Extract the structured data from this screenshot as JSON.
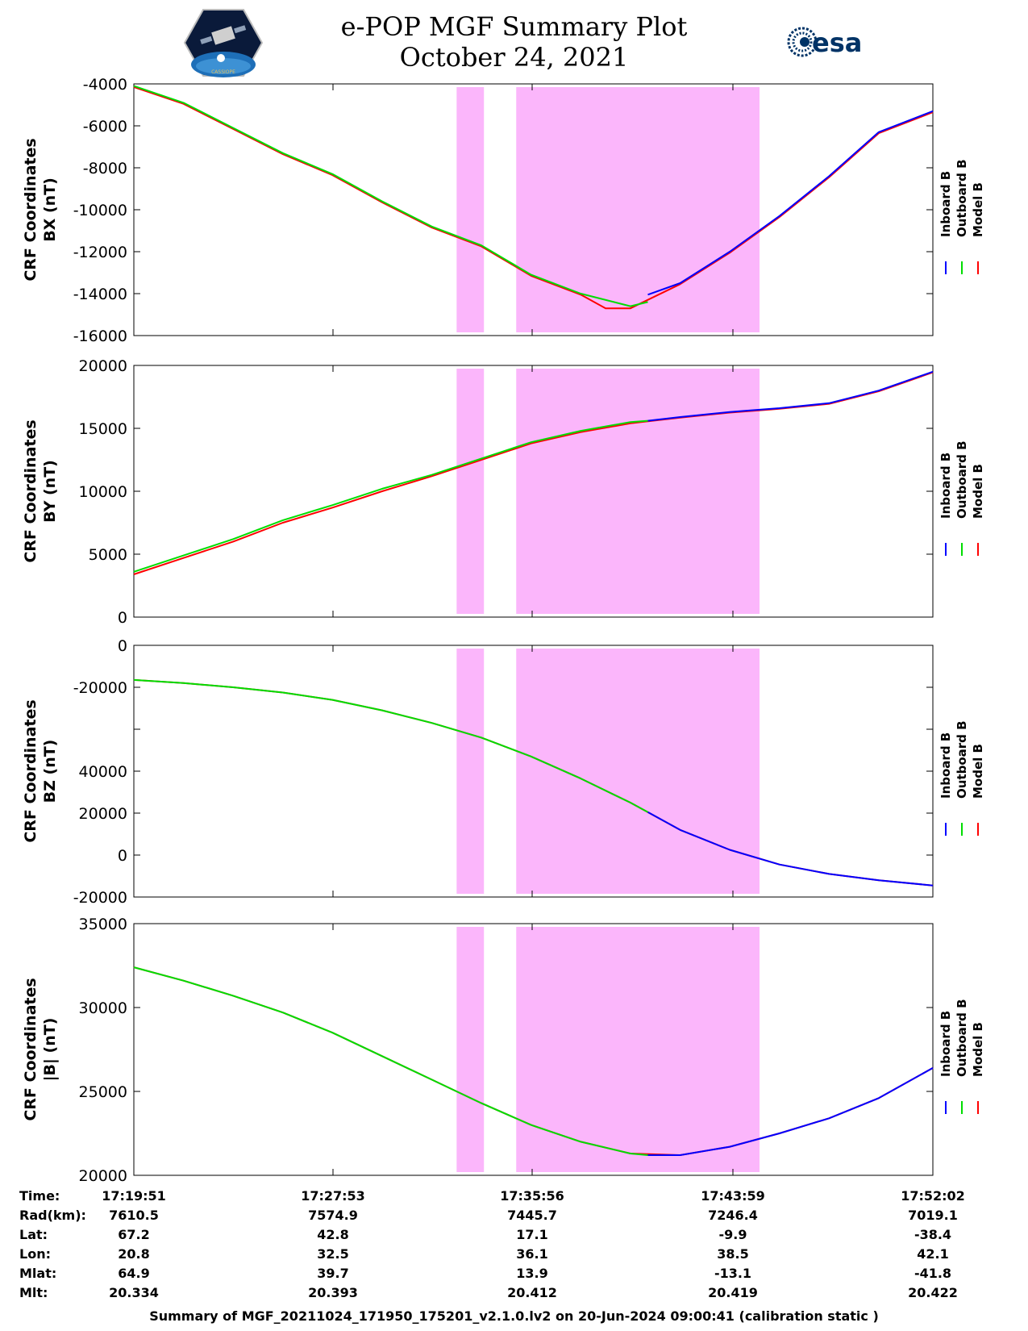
{
  "header": {
    "title_line1": "e-POP MGF Summary Plot",
    "title_line2": "October 24, 2021",
    "logo_left_text": "CASSIOPE",
    "logo_right_text": "esa"
  },
  "chart_data": [
    {
      "type": "line",
      "panel": "BX",
      "ylabel_line1": "CRF Coordinates",
      "ylabel_line2": "BX (nT)",
      "yticks": [
        "-4000",
        "-6000",
        "-8000",
        "-10000",
        "-12000",
        "-14000",
        "-16000"
      ],
      "ylim": [
        -16000,
        -4000
      ],
      "x_range_minutes": [
        0,
        32.18
      ],
      "shaded_intervals_minutes": [
        [
          13.0,
          14.1
        ],
        [
          15.4,
          25.2
        ]
      ],
      "legend": [
        "Inboard B",
        "Outboard B",
        "Model B"
      ],
      "legend_colors": [
        "#0000ff",
        "#00dd00",
        "#ff0000"
      ],
      "series": [
        {
          "name": "Inboard B",
          "color": "#0000ff",
          "x": [
            20.7,
            22,
            24,
            26,
            28,
            30,
            32.18
          ],
          "y": [
            -14050,
            -13500,
            -12000,
            -10300,
            -8400,
            -6300,
            -5300
          ]
        },
        {
          "name": "Outboard B",
          "color": "#00dd00",
          "x": [
            0,
            2,
            4,
            6,
            8,
            10,
            12,
            14,
            16,
            18,
            20,
            20.7
          ],
          "y": [
            -4100,
            -4900,
            -6100,
            -7300,
            -8300,
            -9600,
            -10800,
            -11700,
            -13100,
            -14000,
            -14600,
            -14400
          ]
        },
        {
          "name": "Model B",
          "color": "#ff0000",
          "x": [
            0,
            2,
            4,
            6,
            8,
            10,
            12,
            14,
            16,
            18,
            19,
            20,
            22,
            24,
            26,
            28,
            30,
            32.18
          ],
          "y": [
            -4150,
            -4950,
            -6150,
            -7350,
            -8350,
            -9650,
            -10850,
            -11750,
            -13150,
            -14050,
            -14700,
            -14700,
            -13550,
            -12050,
            -10350,
            -8450,
            -6350,
            -5350
          ]
        }
      ]
    },
    {
      "type": "line",
      "panel": "BY",
      "ylabel_line1": "CRF Coordinates",
      "ylabel_line2": "BY (nT)",
      "yticks": [
        "20000",
        "15000",
        "10000",
        "5000",
        "0"
      ],
      "ylim": [
        0,
        20000
      ],
      "x_range_minutes": [
        0,
        32.18
      ],
      "shaded_intervals_minutes": [
        [
          13.0,
          14.1
        ],
        [
          15.4,
          25.2
        ]
      ],
      "legend": [
        "Inboard B",
        "Outboard B",
        "Model B"
      ],
      "legend_colors": [
        "#0000ff",
        "#00dd00",
        "#ff0000"
      ],
      "series": [
        {
          "name": "Inboard B",
          "color": "#0000ff",
          "x": [
            20.7,
            22,
            24,
            26,
            28,
            30,
            32.18
          ],
          "y": [
            15600,
            15900,
            16300,
            16600,
            17000,
            18000,
            19500
          ]
        },
        {
          "name": "Outboard B",
          "color": "#00dd00",
          "x": [
            0,
            2,
            4,
            6,
            8,
            10,
            12,
            14,
            16,
            18,
            20,
            20.7
          ],
          "y": [
            3600,
            4900,
            6200,
            7700,
            8900,
            10200,
            11300,
            12600,
            13900,
            14800,
            15500,
            15600
          ]
        },
        {
          "name": "Model B",
          "color": "#ff0000",
          "x": [
            0,
            2,
            4,
            6,
            8,
            10,
            12,
            14,
            16,
            18,
            20,
            22,
            24,
            26,
            28,
            30,
            32.18
          ],
          "y": [
            3400,
            4700,
            6000,
            7500,
            8700,
            10000,
            11200,
            12500,
            13800,
            14700,
            15400,
            15850,
            16250,
            16550,
            16950,
            17950,
            19450
          ]
        }
      ]
    },
    {
      "type": "line",
      "panel": "BZ",
      "ylabel_line1": "CRF Coordinates",
      "ylabel_line2": "BZ (nT)",
      "yticks": [
        "0",
        "-20000",
        "",
        "40000",
        "20000",
        "0",
        "-20000"
      ],
      "ylim": [
        -20000,
        100000
      ],
      "x_range_minutes": [
        0,
        32.18
      ],
      "shaded_intervals_minutes": [
        [
          13.0,
          14.1
        ],
        [
          15.4,
          25.2
        ]
      ],
      "legend": [
        "Inboard B",
        "Outboard B",
        "Model B"
      ],
      "legend_colors": [
        "#0000ff",
        "#00dd00",
        "#ff0000"
      ],
      "series": [
        {
          "name": "Inboard B",
          "color": "#0000ff",
          "x": [
            20.7,
            22,
            24,
            26,
            28,
            30,
            32.18
          ],
          "y": [
            20500,
            12000,
            2500,
            -4500,
            -9000,
            -12000,
            -14500
          ]
        },
        {
          "name": "Outboard B",
          "color": "#00dd00",
          "x": [
            0,
            2,
            4,
            6,
            8,
            10,
            12,
            14,
            16,
            18,
            20,
            20.7
          ],
          "y": [
            83500,
            82000,
            80000,
            77500,
            74000,
            69000,
            63000,
            56000,
            47000,
            36500,
            25000,
            20500
          ]
        },
        {
          "name": "Model B",
          "color": "#ff0000",
          "x": [
            0,
            2,
            4,
            6,
            8,
            10,
            12,
            14,
            16,
            18,
            20,
            22,
            24,
            26,
            28,
            30,
            32.18
          ],
          "y": [
            83500,
            82000,
            80000,
            77500,
            74000,
            69000,
            63000,
            56000,
            47000,
            36500,
            25000,
            12000,
            2500,
            -4500,
            -9000,
            -12000,
            -14500
          ]
        }
      ]
    },
    {
      "type": "line",
      "panel": "|B|",
      "ylabel_line1": "CRF Coordinates",
      "ylabel_line2": "|B| (nT)",
      "yticks": [
        "35000",
        "30000",
        "25000",
        "20000"
      ],
      "ylim": [
        20000,
        35000
      ],
      "x_range_minutes": [
        0,
        32.18
      ],
      "shaded_intervals_minutes": [
        [
          13.0,
          14.1
        ],
        [
          15.4,
          25.2
        ]
      ],
      "legend": [
        "Inboard B",
        "Outboard B",
        "Model B"
      ],
      "legend_colors": [
        "#0000ff",
        "#00dd00",
        "#ff0000"
      ],
      "series": [
        {
          "name": "Inboard B",
          "color": "#0000ff",
          "x": [
            20.7,
            22,
            24,
            26,
            28,
            30,
            32.18
          ],
          "y": [
            21200,
            21200,
            21700,
            22500,
            23400,
            24600,
            26400
          ]
        },
        {
          "name": "Outboard B",
          "color": "#00dd00",
          "x": [
            0,
            2,
            4,
            6,
            8,
            10,
            12,
            14,
            16,
            18,
            20,
            20.7
          ],
          "y": [
            32400,
            31600,
            30700,
            29700,
            28500,
            27100,
            25700,
            24300,
            23000,
            22000,
            21300,
            21200
          ]
        },
        {
          "name": "Model B",
          "color": "#ff0000",
          "x": [
            0,
            2,
            4,
            6,
            8,
            10,
            12,
            14,
            16,
            18,
            20,
            22,
            24,
            26,
            28,
            30,
            32.18
          ],
          "y": [
            32400,
            31600,
            30700,
            29700,
            28500,
            27100,
            25700,
            24300,
            23000,
            22000,
            21300,
            21200,
            21700,
            22500,
            23400,
            24600,
            26400
          ]
        }
      ]
    }
  ],
  "ephemeris": {
    "row_labels": [
      "Time:",
      "Rad(km):",
      "Lat:",
      "Lon:",
      "Mlat:",
      "Mlt:"
    ],
    "columns": [
      [
        "17:19:51",
        "7610.5",
        "67.2",
        "20.8",
        "64.9",
        "20.334"
      ],
      [
        "17:27:53",
        "7574.9",
        "42.8",
        "32.5",
        "39.7",
        "20.393"
      ],
      [
        "17:35:56",
        "7445.7",
        "17.1",
        "36.1",
        "13.9",
        "20.412"
      ],
      [
        "17:43:59",
        "7246.4",
        "-9.9",
        "38.5",
        "-13.1",
        "20.419"
      ],
      [
        "17:52:02",
        "7019.1",
        "-38.4",
        "42.1",
        "-41.8",
        "20.422"
      ]
    ]
  },
  "footer": "Summary of MGF_20211024_171950_175201_v2.1.0.lv2 on 20-Jun-2024 09:00:41 (calibration static )"
}
